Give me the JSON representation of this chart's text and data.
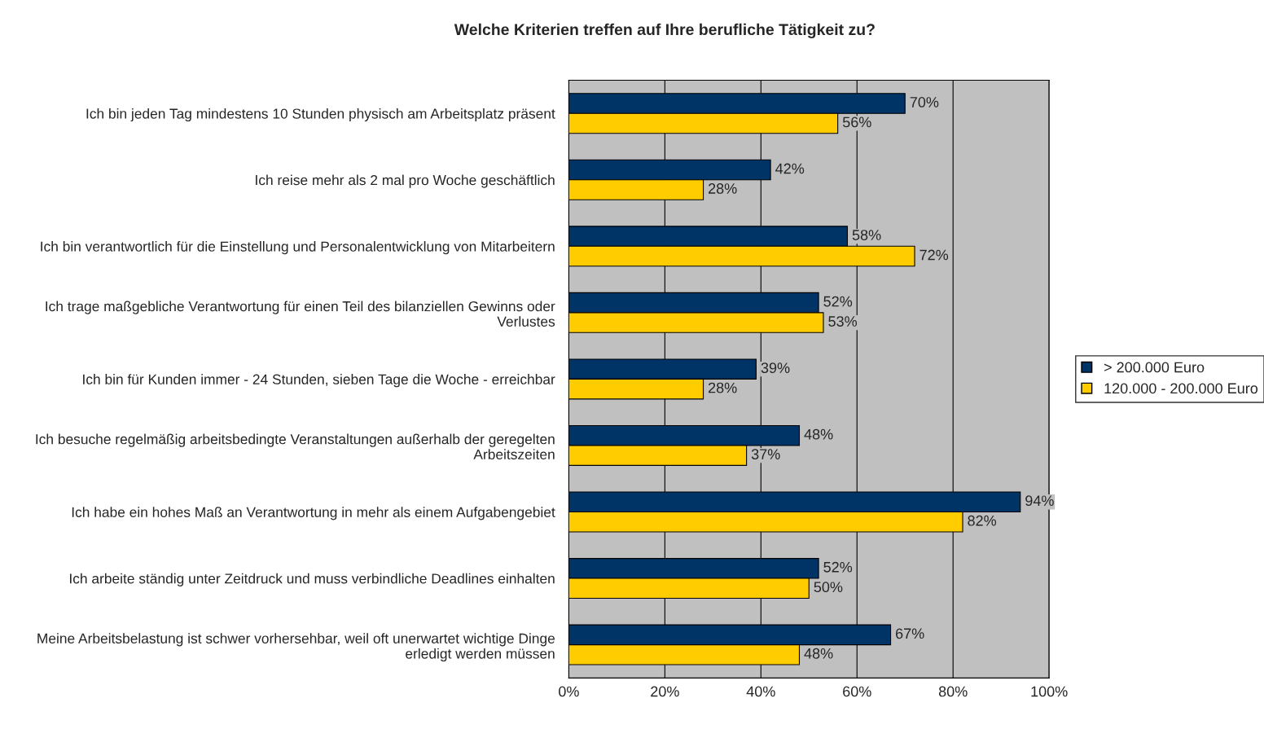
{
  "chart_data": {
    "type": "bar",
    "orientation": "horizontal",
    "title": "Welche Kriterien treffen auf Ihre berufliche Tätigkeit zu?",
    "categories": [
      "Ich bin jeden Tag mindestens 10 Stunden physisch am Arbeitsplatz präsent",
      "Ich reise mehr als 2 mal pro Woche geschäftlich",
      "Ich bin verantwortlich für die Einstellung und Personalentwicklung von Mitarbeitern",
      "Ich trage maßgebliche Verantwortung für einen Teil des bilanziellen Gewinns oder Verlustes",
      "Ich bin für Kunden immer - 24 Stunden, sieben Tage die Woche - erreichbar",
      "Ich besuche regelmäßig arbeitsbedingte Veranstaltungen außerhalb der geregelten Arbeitszeiten",
      "Ich habe ein hohes Maß an Verantwortung in mehr als einem Aufgabengebiet",
      "Ich arbeite ständig unter Zeitdruck und muss verbindliche Deadlines einhalten",
      "Meine Arbeitsbelastung ist schwer vorhersehbar, weil oft unerwartet wichtige Dinge erledigt werden müssen"
    ],
    "series": [
      {
        "name": "> 200.000 Euro",
        "color": "#003366",
        "values": [
          70,
          42,
          58,
          52,
          39,
          48,
          94,
          52,
          67
        ],
        "value_labels": [
          "70%",
          "42%",
          "58%",
          "52%",
          "39%",
          "48%",
          "94%",
          "52%",
          "67%"
        ]
      },
      {
        "name": "120.000 - 200.000 Euro",
        "color": "#ffcc00",
        "values": [
          56,
          28,
          72,
          53,
          28,
          37,
          82,
          50,
          48
        ],
        "value_labels": [
          "56%",
          "28%",
          "72%",
          "53%",
          "28%",
          "37%",
          "82%",
          "50%",
          "48%"
        ]
      }
    ],
    "xlim": [
      0,
      100
    ],
    "xticks": [
      {
        "value": 0,
        "label": "0%"
      },
      {
        "value": 20,
        "label": "20%"
      },
      {
        "value": 40,
        "label": "40%"
      },
      {
        "value": 60,
        "label": "60%"
      },
      {
        "value": 80,
        "label": "80%"
      },
      {
        "value": 100,
        "label": "100%"
      }
    ],
    "grid": "x",
    "legend": "right"
  }
}
